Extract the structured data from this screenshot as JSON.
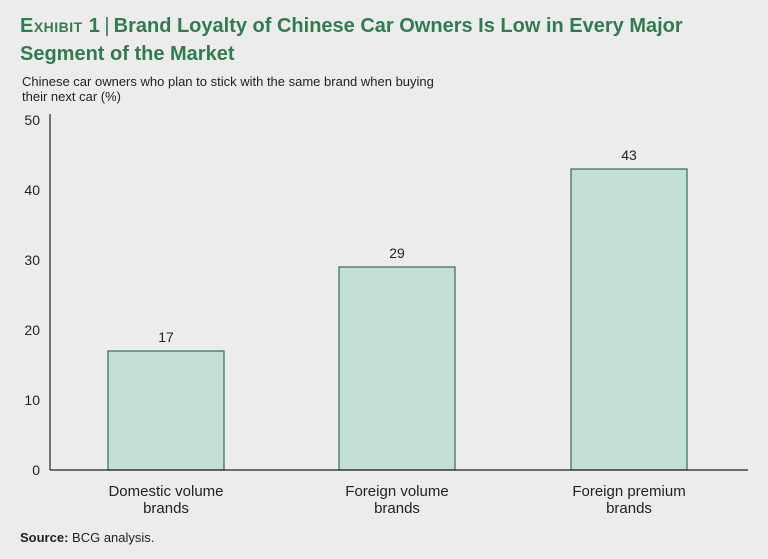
{
  "title": {
    "exhibit": "Exhibit 1",
    "separator": "|",
    "text": "Brand Loyalty of Chinese Car Owners Is Low in Every Major Segment of the Market"
  },
  "subtitle": "Chinese car owners who plan to stick with the same brand when buying their next car (%)",
  "source": {
    "label": "Source:",
    "text": "BCG analysis."
  },
  "colors": {
    "title": "#2f7d4f",
    "bar_fill": "#c3dfd6",
    "bar_stroke": "#2d6a66",
    "axis": "#222222",
    "background": "#ececec"
  },
  "chart_data": {
    "type": "bar",
    "title": "",
    "xlabel": "",
    "ylabel": "",
    "ylim": [
      0,
      50
    ],
    "yticks": [
      0,
      10,
      20,
      30,
      40,
      50
    ],
    "grid": false,
    "categories": [
      [
        "Domestic volume",
        "brands"
      ],
      [
        "Foreign volume",
        "brands"
      ],
      [
        "Foreign premium",
        "brands"
      ]
    ],
    "values": [
      17,
      29,
      43
    ],
    "data_labels": [
      "17",
      "29",
      "43"
    ]
  }
}
